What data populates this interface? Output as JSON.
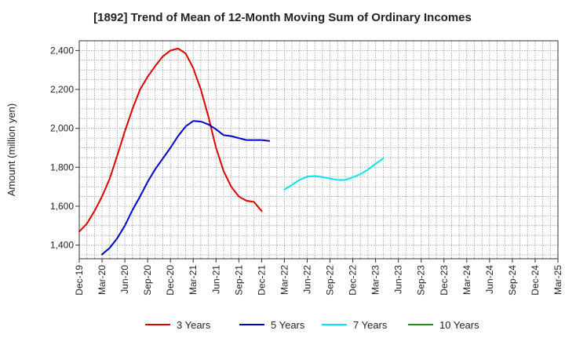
{
  "chart_data": {
    "type": "line",
    "title": "[1892]  Trend of Mean of 12-Month Moving Sum of Ordinary Incomes",
    "xlabel": "",
    "ylabel": "Amount (million yen)",
    "ylim": [
      1330,
      2450
    ],
    "yticks": [
      1400,
      1600,
      1800,
      2000,
      2200,
      2400
    ],
    "ytick_labels": [
      "1,400",
      "1,600",
      "1,800",
      "2,000",
      "2,200",
      "2,400"
    ],
    "x_tick_labels": [
      "Dec-19",
      "Mar-20",
      "Jun-20",
      "Sep-20",
      "Dec-20",
      "Mar-21",
      "Jun-21",
      "Sep-21",
      "Dec-21",
      "Mar-22",
      "Jun-22",
      "Sep-22",
      "Dec-22",
      "Mar-23",
      "Jun-23",
      "Sep-23",
      "Dec-23",
      "Mar-24",
      "Jun-24",
      "Sep-24",
      "Dec-24",
      "Mar-25"
    ],
    "grid": true,
    "legend_position": "bottom",
    "series": [
      {
        "name": "3 Years",
        "color": "#dd0000",
        "start_index": 0,
        "values": [
          1470,
          1510,
          1575,
          1650,
          1740,
          1860,
          1985,
          2100,
          2200,
          2265,
          2320,
          2370,
          2400,
          2410,
          2385,
          2310,
          2200,
          2060,
          1900,
          1780,
          1700,
          1650,
          1628,
          1622,
          1575
        ]
      },
      {
        "name": "5 Years",
        "color": "#0000cc",
        "start_index": 3,
        "values": [
          1352,
          1385,
          1435,
          1500,
          1580,
          1650,
          1725,
          1790,
          1845,
          1900,
          1960,
          2010,
          2038,
          2035,
          2020,
          1995,
          1965,
          1960,
          1950,
          1940,
          1940,
          1940,
          1935
        ]
      },
      {
        "name": "7 Years",
        "color": "#00e5ee",
        "start_index": 27,
        "values": [
          1685,
          1710,
          1735,
          1752,
          1755,
          1750,
          1742,
          1735,
          1735,
          1748,
          1765,
          1788,
          1818,
          1845
        ]
      },
      {
        "name": "10 Years",
        "color": "#228b22",
        "start_index": 0,
        "values": []
      }
    ]
  }
}
